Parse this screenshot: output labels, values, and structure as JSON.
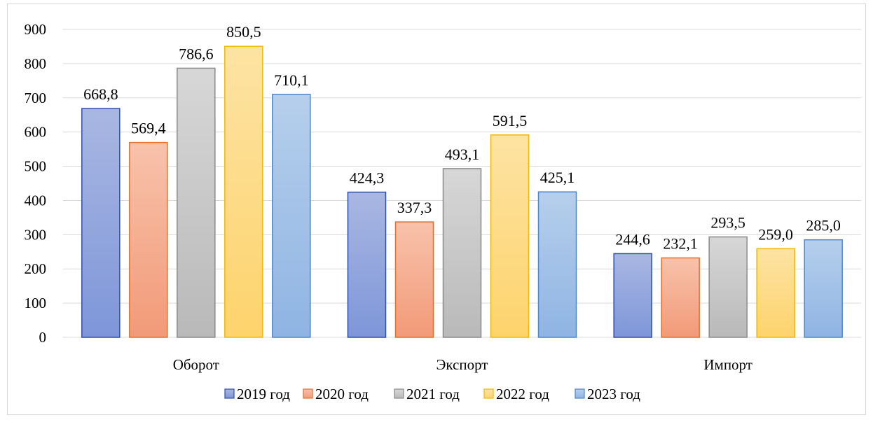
{
  "chart_data": {
    "type": "bar",
    "title": "",
    "xlabel": "",
    "ylabel": "",
    "categories": [
      "Оборот",
      "Экспорт",
      "Импорт"
    ],
    "ylim": [
      0,
      900
    ],
    "yticks": [
      0,
      100,
      200,
      300,
      400,
      500,
      600,
      700,
      800,
      900
    ],
    "grid": true,
    "legend_position": "bottom",
    "series": [
      {
        "name": "2019 год",
        "values": [
          668.8,
          424.3,
          244.6
        ],
        "labels": [
          "668,8",
          "424,3",
          "244,6"
        ],
        "fill_top": "#a9b7e2",
        "fill_bottom": "#7e96d9",
        "stroke": "#2f4fa8"
      },
      {
        "name": "2020 год",
        "values": [
          569.4,
          337.3,
          232.1
        ],
        "labels": [
          "569,4",
          "337,3",
          "232,1"
        ],
        "fill_top": "#f8c2ab",
        "fill_bottom": "#f29a78",
        "stroke": "#e0702f"
      },
      {
        "name": "2021 год",
        "values": [
          786.6,
          493.1,
          293.5
        ],
        "labels": [
          "786,6",
          "493,1",
          "293,5"
        ],
        "fill_top": "#d7d7d7",
        "fill_bottom": "#b9b9b9",
        "stroke": "#8a8a8a"
      },
      {
        "name": "2022 год",
        "values": [
          850.5,
          591.5,
          259.0
        ],
        "labels": [
          "850,5",
          "591,5",
          "259,0"
        ],
        "fill_top": "#fde3a3",
        "fill_bottom": "#fdd36c",
        "stroke": "#f2b705"
      },
      {
        "name": "2023 год",
        "values": [
          710.1,
          425.1,
          285.0
        ],
        "labels": [
          "710,1",
          "425,1",
          "285,0"
        ],
        "fill_top": "#b6cfec",
        "fill_bottom": "#8fb4e3",
        "stroke": "#4f86c8"
      }
    ]
  }
}
